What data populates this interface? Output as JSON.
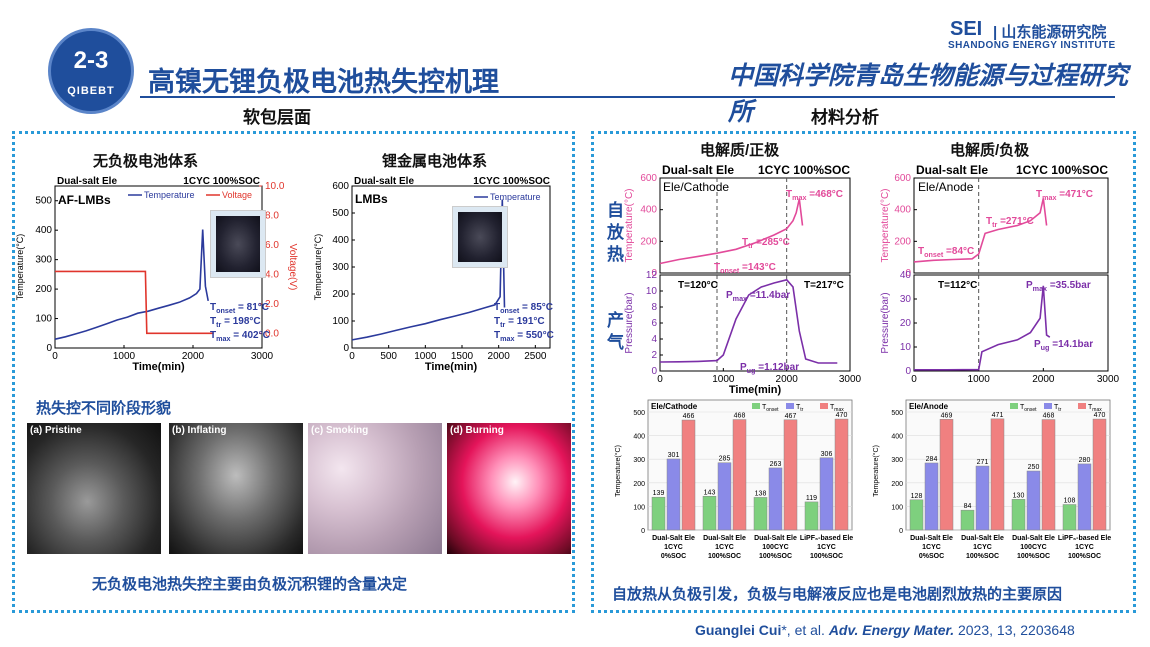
{
  "header": {
    "badge_number": "2-3",
    "badge_org": "QIBEBT",
    "title": "高镍无锂负极电池热失控机理",
    "institute_abbr": "SEI",
    "institute_cn": "| 山东能源研究院",
    "institute_en": "SHANDONG ENERGY INSTITUTE",
    "institute_cas": "中国科学院青岛生物能源与过程研究所"
  },
  "sections": {
    "left_label": "软包层面",
    "right_label": "材料分析"
  },
  "left": {
    "chart1_title": "无负极电池体系",
    "chart2_title": "锂金属电池体系",
    "stage_heading": "热失控不同阶段形貌",
    "photos": [
      "(a) Pristine",
      "(b) Inflating",
      "(c) Smoking",
      "(d) Burning"
    ],
    "caption": "无负极电池热失控主要由负极沉积锂的含量决定"
  },
  "right": {
    "col1_title": "电解质/正极",
    "col2_title": "电解质/负极",
    "side_self_heat": "自放热",
    "side_gas": "产气",
    "caption": "自放热从负极引发，负极与电解液反应也是电池剧烈放热的主要原因"
  },
  "citation": {
    "author": "Guanglei Cui",
    "rest": "*, et al. ",
    "journal": "Adv. Energy Mater.",
    "tail": " 2023, 13, 2203648"
  },
  "colors": {
    "brand_blue": "#1f4e9c",
    "temperature": "#2b3a9c",
    "voltage": "#e0352c",
    "cathode_temp": "#e24a9a",
    "pressure": "#7b2fa8",
    "bar_onset": "#7ed07e",
    "bar_tr": "#8a8ae8",
    "bar_tmax": "#f08080",
    "dotted_border": "#2a9ad8"
  },
  "chart_data": [
    {
      "id": "af-lmb",
      "type": "line",
      "title": "",
      "header_left": "Dual-salt Ele",
      "header_right": "1CYC 100%SOC",
      "tag": "AF-LMBs",
      "xlabel": "Time(min)",
      "ylabel": "Temperature(°C)",
      "y2label": "Voltage(V)",
      "xlim": [
        0,
        3000
      ],
      "ylim": [
        0,
        550
      ],
      "y2lim": [
        -1,
        10
      ],
      "xticks": [
        0,
        1000,
        2000,
        3000
      ],
      "yticks": [
        0,
        100,
        200,
        300,
        400,
        500
      ],
      "y2ticks": [
        0.0,
        2.0,
        4.0,
        6.0,
        8.0,
        10.0
      ],
      "y2tick_labels": [
        "0.0",
        "2.0",
        "4.0",
        "6.0",
        "8.0",
        "10.0"
      ],
      "series": [
        {
          "name": "Temperature",
          "axis": "y",
          "x": [
            0,
            150,
            300,
            450,
            600,
            750,
            900,
            1050,
            1200,
            1350,
            1500,
            1650,
            1800,
            1950,
            2050,
            2100,
            2140,
            2180,
            2220
          ],
          "y": [
            30,
            38,
            48,
            58,
            70,
            82,
            95,
            105,
            118,
            125,
            135,
            145,
            155,
            170,
            185,
            200,
            402,
            210,
            160
          ]
        },
        {
          "name": "Voltage",
          "axis": "y2",
          "x": [
            0,
            1310,
            1330,
            2300
          ],
          "y": [
            4.2,
            4.2,
            0.0,
            0.0
          ]
        }
      ],
      "annotations": [
        {
          "sym": "T",
          "sub": "onset",
          "val": "81°C"
        },
        {
          "sym": "T",
          "sub": "tr",
          "val": "198°C"
        },
        {
          "sym": "T",
          "sub": "max",
          "val": "402°C"
        }
      ]
    },
    {
      "id": "lmb",
      "type": "line",
      "title": "",
      "header_left": "Dual-salt Ele",
      "header_right": "1CYC 100%SOC",
      "tag": "LMBs",
      "xlabel": "Time(min)",
      "ylabel": "Temperature(°C)",
      "xlim": [
        0,
        2700
      ],
      "ylim": [
        0,
        600
      ],
      "xticks": [
        0,
        500,
        1000,
        1500,
        2000,
        2500
      ],
      "yticks": [
        0,
        100,
        200,
        300,
        400,
        500,
        600
      ],
      "series": [
        {
          "name": "Temperature",
          "axis": "y",
          "x": [
            0,
            200,
            400,
            600,
            800,
            1000,
            1200,
            1400,
            1600,
            1800,
            1950,
            2020,
            2050,
            2080
          ],
          "y": [
            30,
            40,
            52,
            65,
            78,
            90,
            105,
            118,
            132,
            148,
            160,
            190,
            550,
            150
          ]
        }
      ],
      "annotations": [
        {
          "sym": "T",
          "sub": "onset",
          "val": "85°C"
        },
        {
          "sym": "T",
          "sub": "tr",
          "val": "191°C"
        },
        {
          "sym": "T",
          "sub": "max",
          "val": "550°C"
        }
      ]
    },
    {
      "id": "cathode-temp",
      "type": "line",
      "header_left": "Dual-salt Ele",
      "header_right": "1CYC 100%SOC",
      "tag": "Ele/Cathode",
      "ylabel": "Temperature(°C)",
      "xlim": [
        0,
        3000
      ],
      "ylim": [
        0,
        600
      ],
      "yticks": [
        0,
        200,
        400,
        600
      ],
      "vlines": [
        900,
        2000
      ],
      "series": [
        {
          "name": "Temperature",
          "x": [
            0,
            300,
            600,
            900,
            1200,
            1500,
            1800,
            2000,
            2100,
            2150,
            2200,
            2250
          ],
          "y": [
            60,
            85,
            105,
            125,
            150,
            190,
            240,
            280,
            330,
            380,
            468,
            300
          ]
        }
      ],
      "annotations": [
        {
          "sym": "T",
          "sub": "max",
          "val": "=468°C"
        },
        {
          "sym": "T",
          "sub": "tr",
          "val": "=285°C"
        },
        {
          "sym": "T",
          "sub": "onset",
          "val": "=143°C"
        }
      ]
    },
    {
      "id": "cathode-pressure",
      "type": "line",
      "ylabel": "Pressure(bar)",
      "xlabel": "Time(min)",
      "xlim": [
        0,
        3000
      ],
      "ylim": [
        0,
        12
      ],
      "xticks": [
        0,
        1000,
        2000,
        3000
      ],
      "yticks": [
        0,
        2,
        4,
        6,
        8,
        10,
        12
      ],
      "vlines": [
        900,
        2000
      ],
      "labels": [
        "T=120°C",
        "T=217°C"
      ],
      "series": [
        {
          "name": "Pressure",
          "x": [
            0,
            300,
            600,
            900,
            1000,
            1200,
            1400,
            1600,
            1800,
            2000,
            2100,
            2200,
            2300,
            2500,
            2800
          ],
          "y": [
            1.12,
            1.15,
            1.2,
            1.3,
            2.0,
            6.5,
            9.5,
            10.5,
            11.0,
            11.4,
            10.5,
            5.0,
            1.5,
            1.0,
            1.0
          ]
        }
      ],
      "annotations": [
        {
          "sym": "P",
          "sub": "max",
          "val": "=11.4bar"
        },
        {
          "sym": "P",
          "sub": "ug",
          "val": "=1.12bar"
        }
      ]
    },
    {
      "id": "anode-temp",
      "type": "line",
      "header_left": "Dual-salt Ele",
      "header_right": "1CYC 100%SOC",
      "tag": "Ele/Anode",
      "ylabel": "Temperature(°C)",
      "xlim": [
        0,
        3000
      ],
      "ylim": [
        0,
        600
      ],
      "yticks": [
        0,
        200,
        400,
        600
      ],
      "vlines": [
        1000
      ],
      "series": [
        {
          "name": "Temperature",
          "x": [
            0,
            300,
            600,
            900,
            1000,
            1100,
            1300,
            1600,
            1800,
            1950,
            2000,
            2050
          ],
          "y": [
            70,
            80,
            85,
            90,
            120,
            250,
            275,
            300,
            330,
            380,
            471,
            300
          ]
        }
      ],
      "annotations": [
        {
          "sym": "T",
          "sub": "max",
          "val": "=471°C"
        },
        {
          "sym": "T",
          "sub": "tr",
          "val": "=271°C"
        },
        {
          "sym": "T",
          "sub": "onset",
          "val": "=84°C"
        }
      ]
    },
    {
      "id": "anode-pressure",
      "type": "line",
      "ylabel": "Pressure(bar)",
      "xlim": [
        0,
        3000
      ],
      "ylim": [
        0,
        40
      ],
      "xticks": [
        0,
        1000,
        2000,
        3000
      ],
      "yticks": [
        0,
        10,
        20,
        30,
        40
      ],
      "vlines": [
        1000
      ],
      "labels": [
        "T=112°C"
      ],
      "series": [
        {
          "name": "Pressure",
          "x": [
            0,
            500,
            1000,
            1050,
            1300,
            1600,
            1800,
            1950,
            2000,
            2050,
            2100
          ],
          "y": [
            0.5,
            0.5,
            0.6,
            8.0,
            11.0,
            13.0,
            16.0,
            22.0,
            35.5,
            15.0,
            14.1
          ]
        }
      ],
      "annotations": [
        {
          "sym": "P",
          "sub": "max",
          "val": "=35.5bar"
        },
        {
          "sym": "P",
          "sub": "ug",
          "val": "=14.1bar"
        }
      ]
    },
    {
      "id": "cathode-bars",
      "type": "bar",
      "tag": "Ele/Cathode",
      "ylabel": "Temperature(°C)",
      "ylim": [
        0,
        500
      ],
      "yticks": [
        0,
        100,
        200,
        300,
        400,
        500
      ],
      "categories": [
        [
          "Dual-Salt Ele",
          "1CYC",
          "0%SOC"
        ],
        [
          "Dual-Salt Ele",
          "1CYC",
          "100%SOC"
        ],
        [
          "Dual-Salt Ele",
          "100CYC",
          "100%SOC"
        ],
        [
          "LiPF₆-based Ele",
          "1CYC",
          "100%SOC"
        ]
      ],
      "series": [
        {
          "name": "T",
          "sub": "onset",
          "values": [
            139,
            143,
            138,
            119
          ]
        },
        {
          "name": "T",
          "sub": "tr",
          "values": [
            301,
            285,
            263,
            306
          ]
        },
        {
          "name": "T",
          "sub": "max",
          "values": [
            466,
            468,
            467,
            470
          ]
        }
      ]
    },
    {
      "id": "anode-bars",
      "type": "bar",
      "tag": "Ele/Anode",
      "ylabel": "Temperature(°C)",
      "ylim": [
        0,
        500
      ],
      "yticks": [
        0,
        100,
        200,
        300,
        400,
        500
      ],
      "categories": [
        [
          "Dual-Salt Ele",
          "1CYC",
          "0%SOC"
        ],
        [
          "Dual-Salt Ele",
          "1CYC",
          "100%SOC"
        ],
        [
          "Dual-Salt Ele",
          "100CYC",
          "100%SOC"
        ],
        [
          "LiPF₆-based Ele",
          "1CYC",
          "100%SOC"
        ]
      ],
      "series": [
        {
          "name": "T",
          "sub": "onset",
          "values": [
            128,
            84,
            130,
            108
          ]
        },
        {
          "name": "T",
          "sub": "tr",
          "values": [
            284,
            271,
            250,
            280
          ]
        },
        {
          "name": "T",
          "sub": "max",
          "values": [
            469,
            471,
            468,
            470
          ]
        }
      ]
    }
  ]
}
